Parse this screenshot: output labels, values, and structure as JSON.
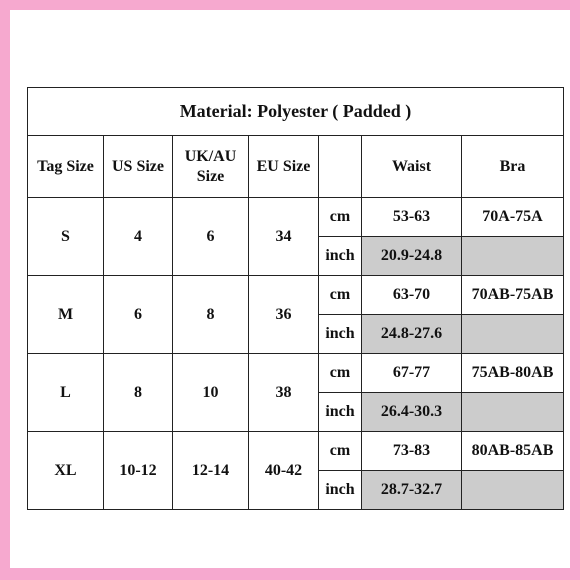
{
  "title": "Material: Polyester ( Padded )",
  "headers": {
    "tag_size": "Tag Size",
    "us_size": "US Size",
    "ukau_line1": "UK/AU",
    "ukau_line2": "Size",
    "eu_size": "EU Size",
    "unit": "",
    "waist": "Waist",
    "bra": "Bra"
  },
  "rows": [
    {
      "tag": "S",
      "us": "4",
      "ukau": "6",
      "eu": "34",
      "unit_cm": "cm",
      "unit_inch": "inch",
      "waist_cm": "53-63",
      "waist_inch": "20.9-24.8",
      "bra": "70A-75A"
    },
    {
      "tag": "M",
      "us": "6",
      "ukau": "8",
      "eu": "36",
      "unit_cm": "cm",
      "unit_inch": "inch",
      "waist_cm": "63-70",
      "waist_inch": "24.8-27.6",
      "bra": "70AB-75AB"
    },
    {
      "tag": "L",
      "us": "8",
      "ukau": "10",
      "eu": "38",
      "unit_cm": "cm",
      "unit_inch": "inch",
      "waist_cm": "67-77",
      "waist_inch": "26.4-30.3",
      "bra": "75AB-80AB"
    },
    {
      "tag": "XL",
      "us": "10-12",
      "ukau": "12-14",
      "eu": "40-42",
      "unit_cm": "cm",
      "unit_inch": "inch",
      "waist_cm": "73-83",
      "waist_inch": "28.7-32.7",
      "bra": "80AB-85AB"
    }
  ],
  "colors": {
    "frame": "#f6a9cf",
    "shaded_cell": "#cccccc"
  }
}
